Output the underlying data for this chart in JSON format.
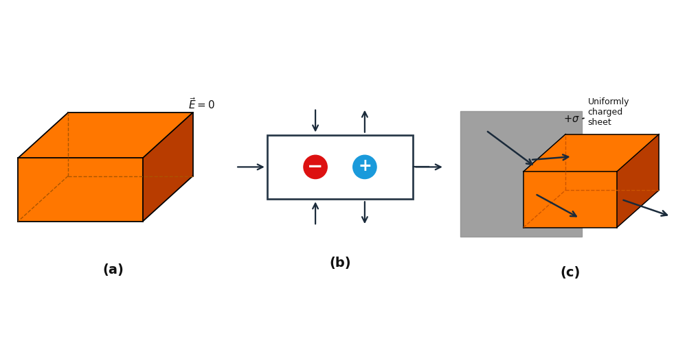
{
  "bg_color": "#ffffff",
  "orange_top": "#FF7700",
  "orange_side": "#B83C00",
  "gray_sheet": "#A0A0A0",
  "arrow_color": "#1a2a3a",
  "box_color": "#2a3a4a",
  "neg_color": "#dd1111",
  "pos_color": "#1a9adb",
  "label_a": "(a)",
  "label_b": "(b)",
  "label_c": "(c)"
}
